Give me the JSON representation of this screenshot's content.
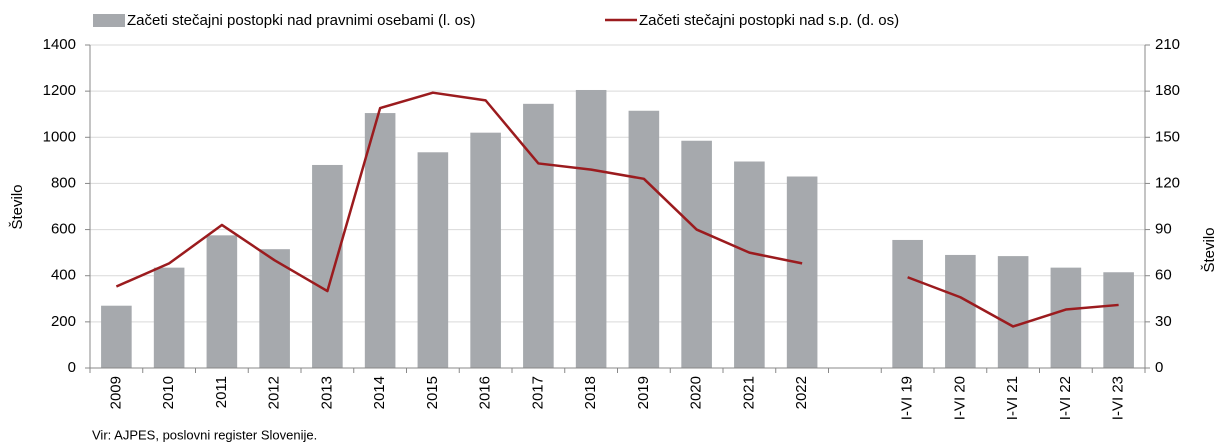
{
  "chart_data": {
    "type": "bar_line",
    "series": [
      {
        "name": "Začeti stečajni postopki nad pravnimi osebami (l. os)",
        "type": "bar",
        "color": "#a6a9ad",
        "values": [
          270,
          435,
          575,
          515,
          880,
          1105,
          935,
          1020,
          1145,
          1205,
          1115,
          985,
          895,
          830,
          null,
          555,
          490,
          485,
          435,
          415
        ]
      },
      {
        "name": "Začeti stečajni postopki nad s.p. (d. os)",
        "type": "line",
        "axis": "y2",
        "color": "#9b1b1e",
        "values": [
          53,
          68,
          93,
          70,
          50,
          169,
          179,
          174,
          133,
          129,
          123,
          90,
          75,
          68,
          null,
          59,
          46,
          27,
          38,
          41
        ]
      }
    ],
    "categories": [
      "2009",
      "2010",
      "2011",
      "2012",
      "2013",
      "2014",
      "2015",
      "2016",
      "2017",
      "2018",
      "2019",
      "2020",
      "2021",
      "2022",
      null,
      "I-VI 19",
      "I-VI 20",
      "I-VI 21",
      "I-VI 22",
      "I-VI 23"
    ],
    "ylabel": "Število",
    "y2label": "Število",
    "ylim": [
      0,
      1400
    ],
    "yticks": [
      0,
      200,
      400,
      600,
      800,
      1000,
      1200,
      1400
    ],
    "y2lim": [
      0,
      210
    ],
    "y2ticks": [
      0,
      30,
      60,
      90,
      120,
      150,
      180,
      210
    ],
    "grid": true,
    "legend": "top",
    "source": "Vir: AJPES, poslovni register Slovenije."
  }
}
